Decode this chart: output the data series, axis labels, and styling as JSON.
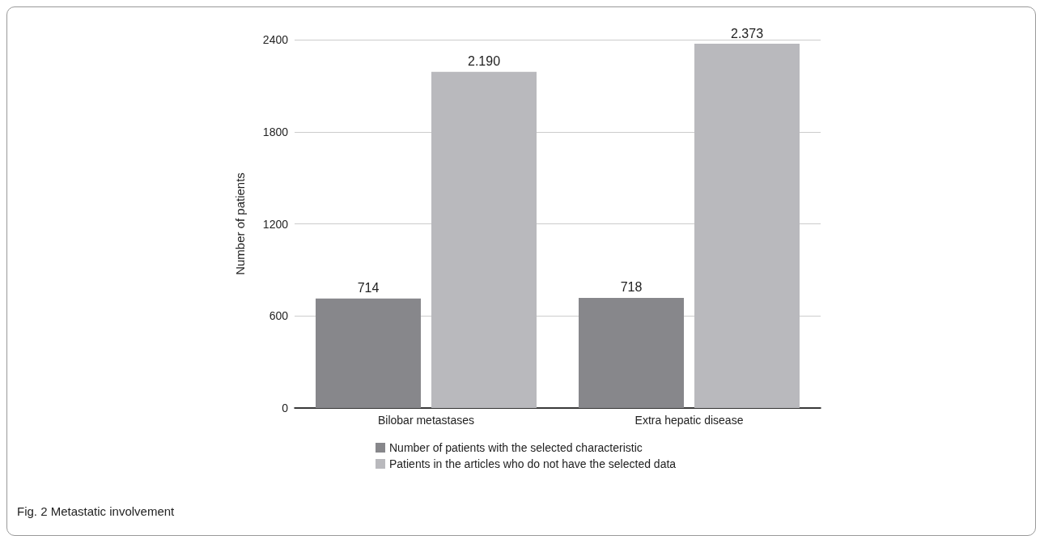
{
  "chart_data": {
    "type": "bar",
    "ylabel": "Number of patients",
    "categories": [
      "Bilobar metastases",
      "Extra hepatic disease"
    ],
    "series": [
      {
        "name": "Number of patients with the selected characteristic",
        "color": "#87878b",
        "values": [
          714,
          718
        ],
        "value_labels": [
          "714",
          "718"
        ]
      },
      {
        "name": "Patients in the articles who do not have the selected data",
        "color": "#b9b9bd",
        "values": [
          2190,
          2373
        ],
        "value_labels": [
          "2.190",
          "2.373"
        ]
      }
    ],
    "ylim": [
      0,
      2400
    ],
    "yticks": [
      0,
      600,
      1200,
      1800,
      2400
    ],
    "grid": "y",
    "legend": "bottom",
    "annotations": [
      "Fig. 2 Metastatic involvement"
    ]
  }
}
